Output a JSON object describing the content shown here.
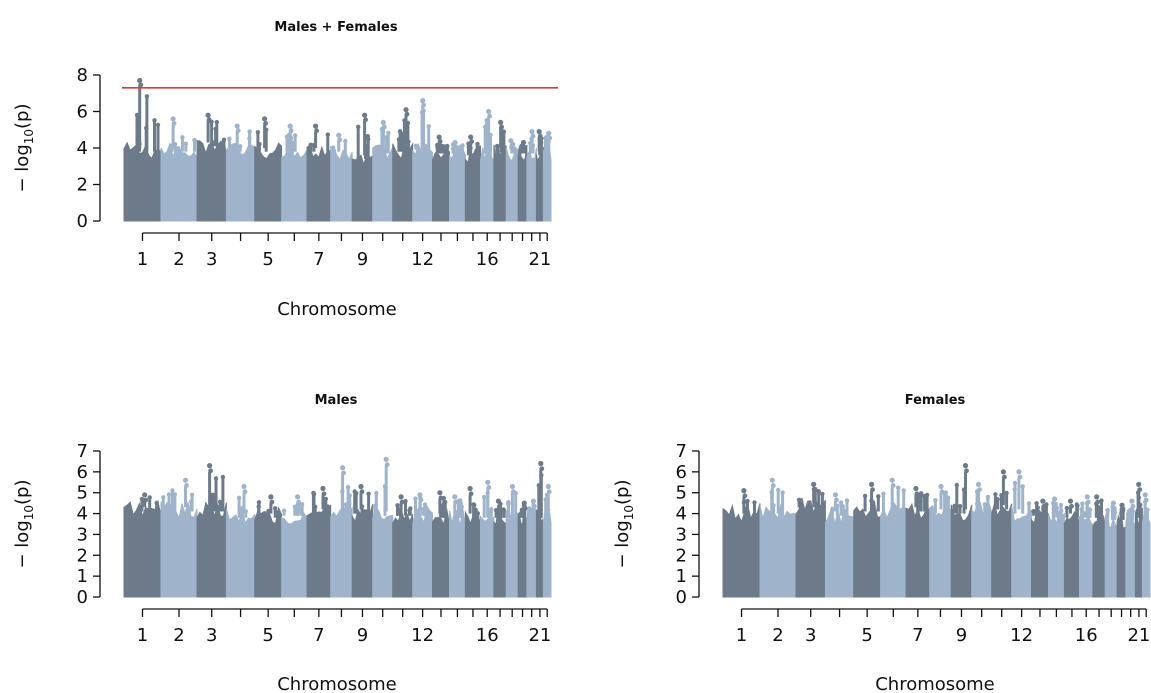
{
  "colors": {
    "dark": "#6c7a89",
    "light": "#9fb4cb",
    "threshold": "#e03b2d"
  },
  "chart_data": [
    {
      "type": "scatter",
      "subtype": "manhattan",
      "title": "Males + Females",
      "xlabel": "Chromosome",
      "ylabel": "− log10(p)",
      "ylabel_parts": {
        "prefix": "− log",
        "sub": "10",
        "suffix": "(p)"
      },
      "ylim": [
        0,
        8
      ],
      "yticks": [
        "0",
        "2",
        "4",
        "6",
        "8"
      ],
      "threshold": 7.3,
      "x_tick_labels": [
        "1",
        "2",
        "3",
        "5",
        "7",
        "9",
        "12",
        "16",
        "21"
      ],
      "chromosomes": [
        "1",
        "2",
        "3",
        "4",
        "5",
        "6",
        "7",
        "8",
        "9",
        "10",
        "11",
        "12",
        "13",
        "14",
        "15",
        "16",
        "17",
        "18",
        "19",
        "20",
        "21",
        "22"
      ],
      "chrom_max": [
        7.7,
        5.6,
        5.8,
        5.2,
        5.6,
        5.2,
        5.2,
        4.7,
        5.8,
        5.4,
        6.1,
        6.6,
        4.6,
        4.3,
        4.6,
        6.0,
        5.4,
        4.4,
        4.3,
        4.9,
        4.9,
        4.8
      ],
      "chrom_floor": [
        4.0,
        4.0,
        4.3,
        4.0,
        4.0,
        4.0,
        4.0,
        3.8,
        3.6,
        3.9,
        4.0,
        4.1,
        3.9,
        3.9,
        3.8,
        3.9,
        4.0,
        3.9,
        3.9,
        3.9,
        3.8,
        3.9
      ]
    },
    {
      "type": "scatter",
      "subtype": "manhattan",
      "title": "Males",
      "xlabel": "Chromosome",
      "ylabel": "− log10(p)",
      "ylabel_parts": {
        "prefix": "− log",
        "sub": "10",
        "suffix": "(p)"
      },
      "ylim": [
        0,
        7
      ],
      "yticks": [
        "0",
        "1",
        "2",
        "3",
        "4",
        "5",
        "6",
        "7"
      ],
      "x_tick_labels": [
        "1",
        "2",
        "3",
        "5",
        "7",
        "9",
        "12",
        "16",
        "21"
      ],
      "chromosomes": [
        "1",
        "2",
        "3",
        "4",
        "5",
        "6",
        "7",
        "8",
        "9",
        "10",
        "11",
        "12",
        "13",
        "14",
        "15",
        "16",
        "17",
        "18",
        "19",
        "20",
        "21",
        "22"
      ],
      "chrom_max": [
        4.9,
        5.6,
        6.3,
        5.3,
        4.8,
        4.8,
        5.2,
        6.2,
        5.3,
        6.6,
        4.8,
        4.9,
        5.0,
        4.8,
        5.2,
        5.5,
        4.6,
        5.3,
        4.5,
        4.6,
        6.4,
        5.3
      ],
      "chrom_floor": [
        4.3,
        4.3,
        4.3,
        4.0,
        4.0,
        4.1,
        4.2,
        4.1,
        4.2,
        4.1,
        4.1,
        4.1,
        4.0,
        4.0,
        4.0,
        4.0,
        4.0,
        4.0,
        4.0,
        4.0,
        4.0,
        4.0
      ]
    },
    {
      "type": "scatter",
      "subtype": "manhattan",
      "title": "Females",
      "xlabel": "Chromosome",
      "ylabel": "− log10(p)",
      "ylabel_parts": {
        "prefix": "− log",
        "sub": "10",
        "suffix": "(p)"
      },
      "ylim": [
        0,
        7
      ],
      "yticks": [
        "0",
        "1",
        "2",
        "3",
        "4",
        "5",
        "6",
        "7"
      ],
      "x_tick_labels": [
        "1",
        "2",
        "3",
        "5",
        "7",
        "9",
        "12",
        "16",
        "21"
      ],
      "chromosomes": [
        "1",
        "2",
        "3",
        "4",
        "5",
        "6",
        "7",
        "8",
        "9",
        "10",
        "11",
        "12",
        "13",
        "14",
        "15",
        "16",
        "17",
        "18",
        "19",
        "20",
        "21",
        "22"
      ],
      "chrom_max": [
        5.1,
        5.6,
        5.4,
        4.9,
        5.4,
        5.6,
        5.2,
        5.3,
        6.3,
        5.4,
        6.0,
        6.0,
        4.6,
        4.7,
        4.6,
        4.8,
        4.8,
        4.5,
        4.4,
        4.6,
        5.4,
        4.9
      ],
      "chrom_floor": [
        4.2,
        4.2,
        4.5,
        4.1,
        4.3,
        4.3,
        4.3,
        4.2,
        4.2,
        4.3,
        4.4,
        4.2,
        4.1,
        4.0,
        4.0,
        4.0,
        4.0,
        3.9,
        3.9,
        3.9,
        4.0,
        4.0
      ]
    }
  ]
}
